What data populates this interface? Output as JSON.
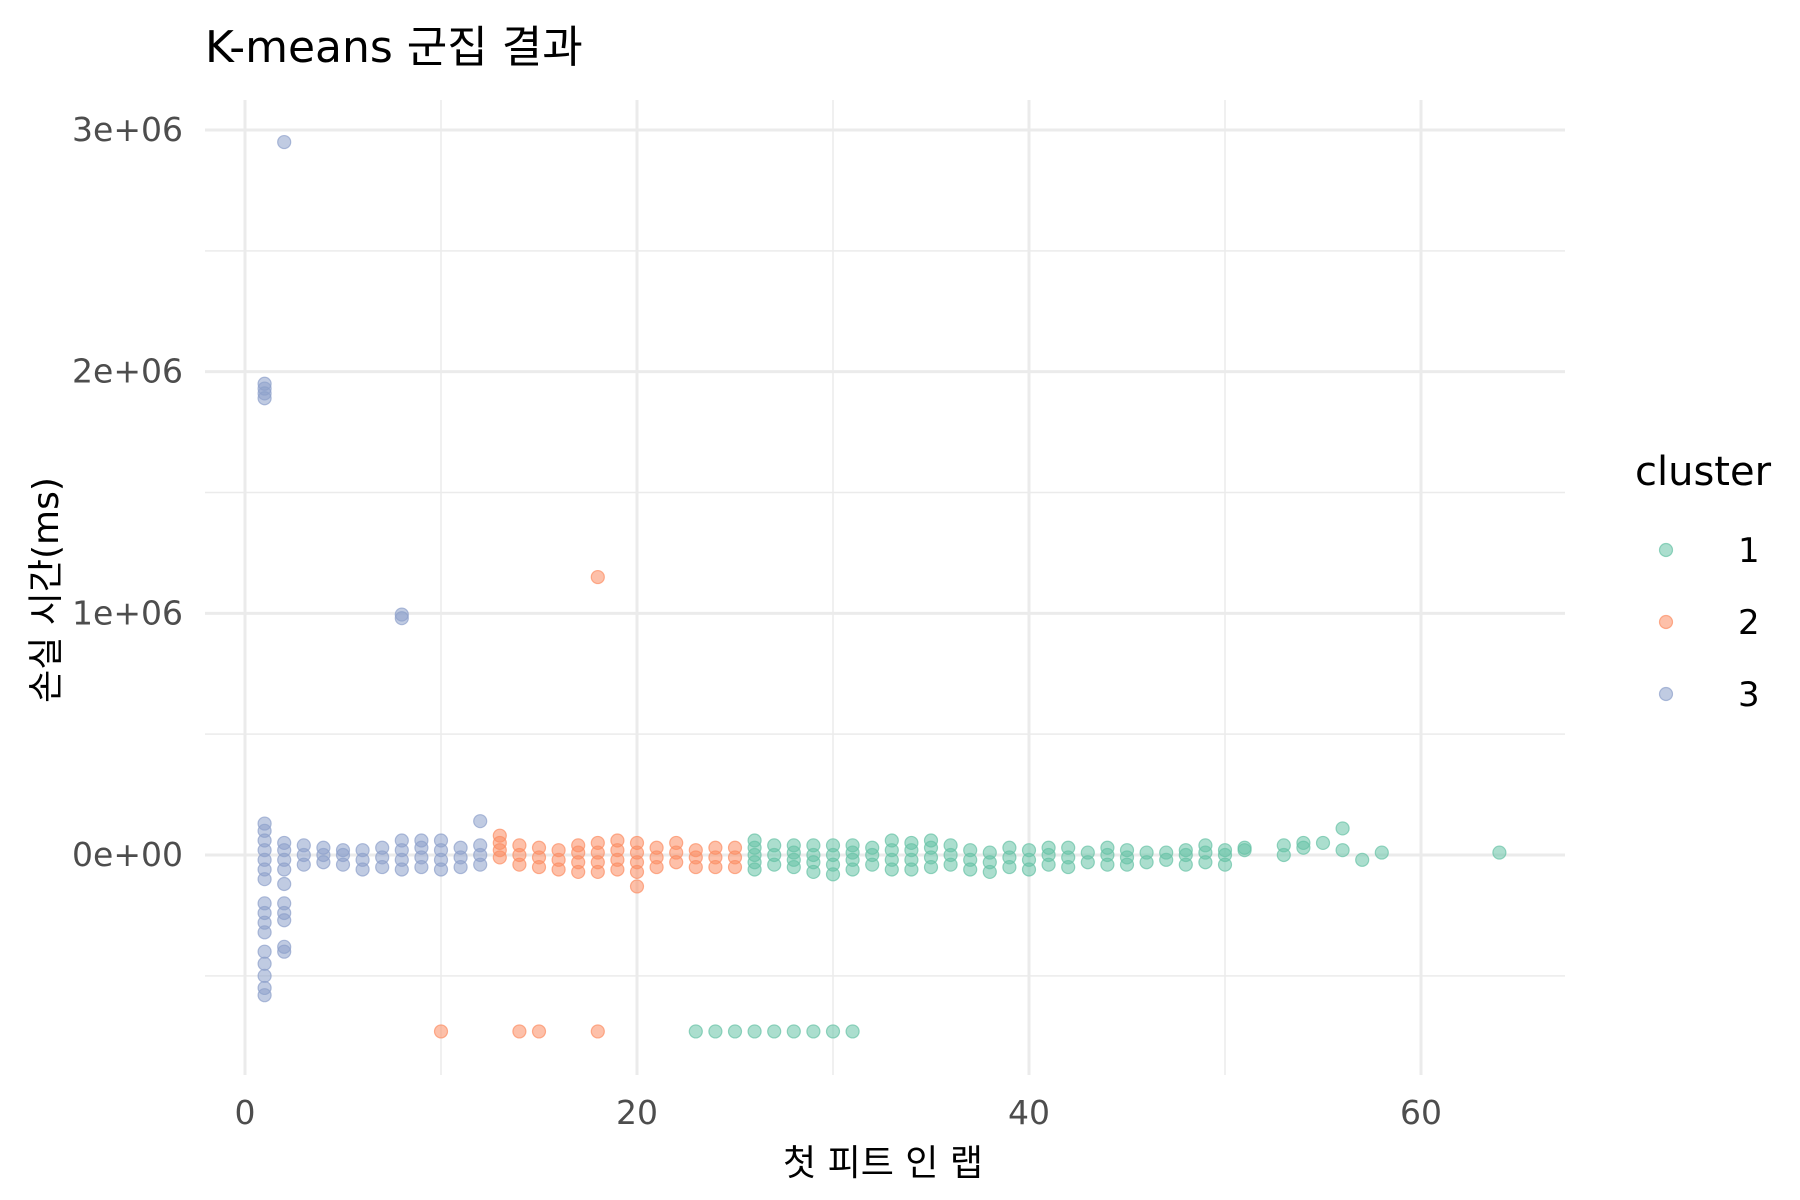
{
  "chart_data": {
    "type": "scatter",
    "title": "K-means 군집 결과",
    "xlabel": "첫 피트 인 랩",
    "ylabel": "손실 시간(ms)",
    "xlim": [
      -4,
      67
    ],
    "ylim": [
      -900000,
      3150000
    ],
    "x_ticks": [
      0,
      20,
      40,
      60
    ],
    "x_tick_labels": [
      "0",
      "20",
      "40",
      "60"
    ],
    "y_ticks": [
      0,
      1000000,
      2000000,
      3000000
    ],
    "y_tick_labels": [
      "0e+00",
      "1e+06",
      "2e+06",
      "3e+06"
    ],
    "grid": true,
    "legend": {
      "title": "cluster",
      "position": "right"
    },
    "series": [
      {
        "name": "1",
        "color": "#66c2a5",
        "points": [
          [
            26,
            -60000
          ],
          [
            26,
            -30000
          ],
          [
            26,
            0
          ],
          [
            26,
            30000
          ],
          [
            26,
            60000
          ],
          [
            27,
            -40000
          ],
          [
            27,
            0
          ],
          [
            27,
            40000
          ],
          [
            28,
            -50000
          ],
          [
            28,
            -20000
          ],
          [
            28,
            10000
          ],
          [
            28,
            40000
          ],
          [
            29,
            -70000
          ],
          [
            29,
            -30000
          ],
          [
            29,
            0
          ],
          [
            29,
            40000
          ],
          [
            30,
            -80000
          ],
          [
            30,
            -40000
          ],
          [
            30,
            0
          ],
          [
            30,
            40000
          ],
          [
            31,
            -60000
          ],
          [
            31,
            -20000
          ],
          [
            31,
            10000
          ],
          [
            31,
            40000
          ],
          [
            32,
            -40000
          ],
          [
            32,
            0
          ],
          [
            32,
            30000
          ],
          [
            33,
            -60000
          ],
          [
            33,
            -20000
          ],
          [
            33,
            20000
          ],
          [
            33,
            60000
          ],
          [
            34,
            -60000
          ],
          [
            34,
            -20000
          ],
          [
            34,
            20000
          ],
          [
            34,
            50000
          ],
          [
            35,
            -50000
          ],
          [
            35,
            -10000
          ],
          [
            35,
            30000
          ],
          [
            35,
            60000
          ],
          [
            36,
            -40000
          ],
          [
            36,
            0
          ],
          [
            36,
            40000
          ],
          [
            37,
            -60000
          ],
          [
            37,
            -20000
          ],
          [
            37,
            20000
          ],
          [
            38,
            -70000
          ],
          [
            38,
            -30000
          ],
          [
            38,
            10000
          ],
          [
            39,
            -50000
          ],
          [
            39,
            -10000
          ],
          [
            39,
            30000
          ],
          [
            40,
            -60000
          ],
          [
            40,
            -20000
          ],
          [
            40,
            20000
          ],
          [
            41,
            -40000
          ],
          [
            41,
            0
          ],
          [
            41,
            30000
          ],
          [
            42,
            -50000
          ],
          [
            42,
            -10000
          ],
          [
            42,
            30000
          ],
          [
            43,
            -30000
          ],
          [
            43,
            10000
          ],
          [
            44,
            -40000
          ],
          [
            44,
            0
          ],
          [
            44,
            30000
          ],
          [
            45,
            -40000
          ],
          [
            45,
            -10000
          ],
          [
            45,
            20000
          ],
          [
            46,
            -30000
          ],
          [
            46,
            10000
          ],
          [
            47,
            -20000
          ],
          [
            47,
            10000
          ],
          [
            48,
            -40000
          ],
          [
            48,
            0
          ],
          [
            48,
            20000
          ],
          [
            49,
            -30000
          ],
          [
            49,
            10000
          ],
          [
            49,
            40000
          ],
          [
            50,
            -40000
          ],
          [
            50,
            0
          ],
          [
            50,
            20000
          ],
          [
            51,
            20000
          ],
          [
            51,
            30000
          ],
          [
            53,
            0
          ],
          [
            53,
            40000
          ],
          [
            54,
            30000
          ],
          [
            54,
            50000
          ],
          [
            55,
            50000
          ],
          [
            56,
            20000
          ],
          [
            56,
            110000
          ],
          [
            57,
            -20000
          ],
          [
            58,
            10000
          ],
          [
            64,
            10000
          ],
          [
            23,
            -730000
          ],
          [
            24,
            -730000
          ],
          [
            25,
            -730000
          ],
          [
            26,
            -730000
          ],
          [
            27,
            -730000
          ],
          [
            28,
            -730000
          ],
          [
            29,
            -730000
          ],
          [
            30,
            -730000
          ],
          [
            31,
            -730000
          ]
        ]
      },
      {
        "name": "2",
        "color": "#fc8d62",
        "points": [
          [
            13,
            -10000
          ],
          [
            13,
            20000
          ],
          [
            13,
            50000
          ],
          [
            13,
            80000
          ],
          [
            14,
            -40000
          ],
          [
            14,
            0
          ],
          [
            14,
            40000
          ],
          [
            15,
            -50000
          ],
          [
            15,
            -10000
          ],
          [
            15,
            30000
          ],
          [
            16,
            -60000
          ],
          [
            16,
            -20000
          ],
          [
            16,
            20000
          ],
          [
            17,
            -70000
          ],
          [
            17,
            -30000
          ],
          [
            17,
            10000
          ],
          [
            17,
            40000
          ],
          [
            18,
            -70000
          ],
          [
            18,
            -30000
          ],
          [
            18,
            10000
          ],
          [
            18,
            50000
          ],
          [
            19,
            -60000
          ],
          [
            19,
            -20000
          ],
          [
            19,
            20000
          ],
          [
            19,
            60000
          ],
          [
            20,
            -70000
          ],
          [
            20,
            -30000
          ],
          [
            20,
            10000
          ],
          [
            20,
            50000
          ],
          [
            21,
            -50000
          ],
          [
            21,
            -10000
          ],
          [
            21,
            30000
          ],
          [
            22,
            -30000
          ],
          [
            22,
            10000
          ],
          [
            22,
            50000
          ],
          [
            23,
            -50000
          ],
          [
            23,
            -10000
          ],
          [
            23,
            20000
          ],
          [
            24,
            -50000
          ],
          [
            24,
            -10000
          ],
          [
            24,
            30000
          ],
          [
            25,
            -50000
          ],
          [
            25,
            -10000
          ],
          [
            25,
            30000
          ],
          [
            18,
            1150000
          ],
          [
            20,
            -130000
          ],
          [
            10,
            -730000
          ],
          [
            14,
            -730000
          ],
          [
            15,
            -730000
          ],
          [
            18,
            -730000
          ]
        ]
      },
      {
        "name": "3",
        "color": "#8da0cb",
        "points": [
          [
            1,
            -100000
          ],
          [
            1,
            -60000
          ],
          [
            1,
            -20000
          ],
          [
            1,
            20000
          ],
          [
            1,
            60000
          ],
          [
            1,
            100000
          ],
          [
            1,
            130000
          ],
          [
            1,
            -200000
          ],
          [
            1,
            -240000
          ],
          [
            1,
            -280000
          ],
          [
            1,
            -320000
          ],
          [
            1,
            -400000
          ],
          [
            1,
            -450000
          ],
          [
            1,
            -500000
          ],
          [
            1,
            -550000
          ],
          [
            1,
            -580000
          ],
          [
            1,
            1890000
          ],
          [
            1,
            1910000
          ],
          [
            1,
            1930000
          ],
          [
            1,
            1950000
          ],
          [
            2,
            -60000
          ],
          [
            2,
            -20000
          ],
          [
            2,
            20000
          ],
          [
            2,
            50000
          ],
          [
            2,
            -200000
          ],
          [
            2,
            -240000
          ],
          [
            2,
            -270000
          ],
          [
            2,
            -380000
          ],
          [
            2,
            -400000
          ],
          [
            2,
            2950000
          ],
          [
            2,
            -120000
          ],
          [
            3,
            -40000
          ],
          [
            3,
            0
          ],
          [
            3,
            40000
          ],
          [
            4,
            -30000
          ],
          [
            4,
            0
          ],
          [
            4,
            30000
          ],
          [
            5,
            -40000
          ],
          [
            5,
            0
          ],
          [
            5,
            20000
          ],
          [
            6,
            -60000
          ],
          [
            6,
            -20000
          ],
          [
            6,
            20000
          ],
          [
            7,
            -50000
          ],
          [
            7,
            -10000
          ],
          [
            7,
            30000
          ],
          [
            8,
            -60000
          ],
          [
            8,
            -20000
          ],
          [
            8,
            20000
          ],
          [
            8,
            60000
          ],
          [
            8,
            980000
          ],
          [
            8,
            995000
          ],
          [
            9,
            -50000
          ],
          [
            9,
            -10000
          ],
          [
            9,
            30000
          ],
          [
            9,
            60000
          ],
          [
            10,
            -60000
          ],
          [
            10,
            -20000
          ],
          [
            10,
            20000
          ],
          [
            10,
            60000
          ],
          [
            11,
            -50000
          ],
          [
            11,
            -10000
          ],
          [
            11,
            30000
          ],
          [
            12,
            -40000
          ],
          [
            12,
            0
          ],
          [
            12,
            40000
          ],
          [
            12,
            140000
          ]
        ]
      }
    ]
  }
}
